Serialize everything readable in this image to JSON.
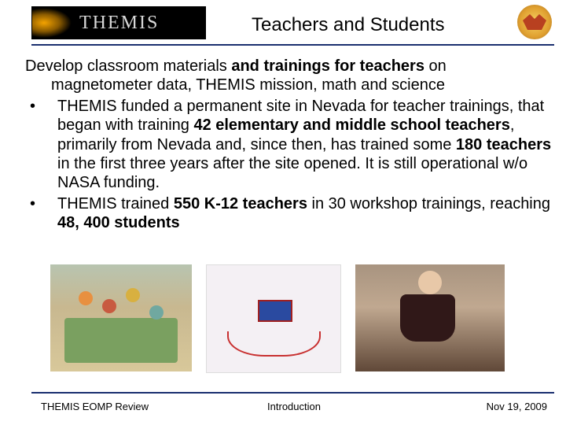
{
  "header": {
    "logo_text": "THEMIS",
    "title": "Teachers and Students"
  },
  "content": {
    "intro_1": "Develop classroom materials ",
    "intro_bold": "and trainings for teachers",
    "intro_2": " on",
    "intro_line2": "magnetometer data, THEMIS mission, math and science",
    "b1_a": "THEMIS funded a permanent site in Nevada for teacher trainings, that began with training ",
    "b1_bold1": "42 elementary and middle school teachers",
    "b1_b": ", primarily from Nevada and, since then, has trained some ",
    "b1_bold2": "180 teachers",
    "b1_c": " in the first three years after the site opened. It is still operational w/o NASA funding.",
    "b2_a": "THEMIS trained ",
    "b2_bold1": "550 K-12 teachers",
    "b2_b": " in 30 workshop trainings, reaching ",
    "b2_bold2": "48, 400 students"
  },
  "footer": {
    "left": "THEMIS EOMP Review",
    "center": "Introduction",
    "right": "Nov 19, 2009"
  },
  "styling": {
    "slide_width": 720,
    "slide_height": 540,
    "title_fontsize": 24,
    "body_fontsize": 20,
    "footer_fontsize": 13,
    "rule_color": "#1a2f6f",
    "text_color": "#000000",
    "background_color": "#ffffff",
    "logo_bg": "#000000",
    "logo_text_color": "#d8d8d8"
  },
  "images": [
    {
      "name": "classroom-photo",
      "approx_w": 180,
      "approx_h": 136,
      "desc": "teachers at table in classroom"
    },
    {
      "name": "magnetometer-photo",
      "approx_w": 170,
      "approx_h": 136,
      "desc": "device with red wire loops on white background"
    },
    {
      "name": "workshop-photo",
      "approx_w": 190,
      "approx_h": 136,
      "desc": "woman and child at activity table"
    }
  ]
}
